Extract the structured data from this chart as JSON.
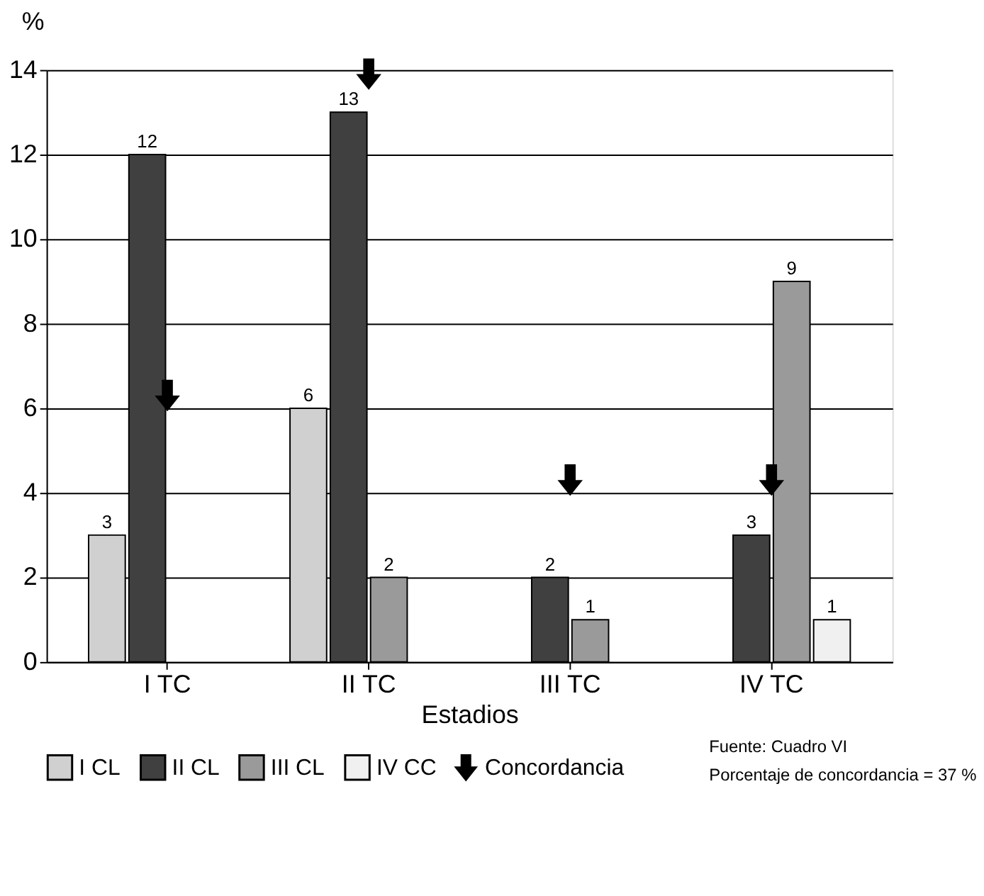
{
  "chart_data": {
    "type": "bar",
    "xlabel": "Estadios",
    "ylabel": "%",
    "categories": [
      "I TC",
      "II TC",
      "III TC",
      "IV TC"
    ],
    "series": [
      {
        "name": "I CL",
        "color": "#d0d0d0",
        "values": [
          3,
          6,
          null,
          null
        ],
        "value_labels": [
          "3",
          "6",
          null,
          null
        ]
      },
      {
        "name": "II CL",
        "color": "#404040",
        "values": [
          12,
          13,
          2,
          3
        ],
        "value_labels": [
          "12",
          "13",
          "2",
          "3"
        ]
      },
      {
        "name": "III CL",
        "color": "#9a9a9a",
        "values": [
          null,
          2,
          1,
          9
        ],
        "value_labels": [
          null,
          "2",
          "1",
          "9"
        ]
      },
      {
        "name": "IV CC",
        "color": "#f0f0f0",
        "values": [
          null,
          null,
          null,
          1
        ],
        "value_labels": [
          null,
          null,
          null,
          "1"
        ]
      },
      {
        "name": "Concordancia",
        "type": "scatter",
        "color": "#000000",
        "x": [
          "I TC",
          "II TC",
          "III TC",
          "IV TC"
        ],
        "values": [
          6.3,
          13.9,
          4.3,
          4.3
        ]
      }
    ],
    "ylim": [
      0,
      14
    ],
    "yticks": [
      0,
      2,
      4,
      6,
      8,
      10,
      12,
      14
    ],
    "grid": "y",
    "legend": "bottom",
    "annotations": [
      "Fuente: Cuadro VI",
      "Porcentaje de concordancia = 37 %"
    ]
  }
}
